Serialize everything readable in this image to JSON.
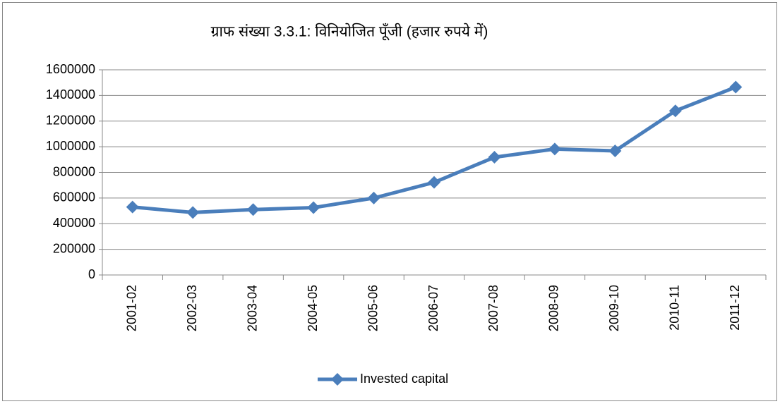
{
  "chart_data": {
    "type": "line",
    "title": "ग्राफ संख्या 3.3.1: विनियोजित पूँजी (हजार रुपये में)",
    "categories": [
      "2001-02",
      "2002-03",
      "2003-04",
      "2004-05",
      "2005-06",
      "2006-07",
      "2007-08",
      "2008-09",
      "2009-10",
      "2010-11",
      "2011-12"
    ],
    "series": [
      {
        "name": "Invested capital",
        "color": "#4a7ebb",
        "values": [
          530000,
          487000,
          510000,
          525000,
          600000,
          722000,
          918000,
          982000,
          968000,
          1280000,
          1465000
        ]
      }
    ],
    "ylim": [
      0,
      1600000
    ],
    "yticks": [
      0,
      200000,
      400000,
      600000,
      800000,
      1000000,
      1200000,
      1400000,
      1600000
    ],
    "grid": true,
    "legend": "bottom"
  }
}
